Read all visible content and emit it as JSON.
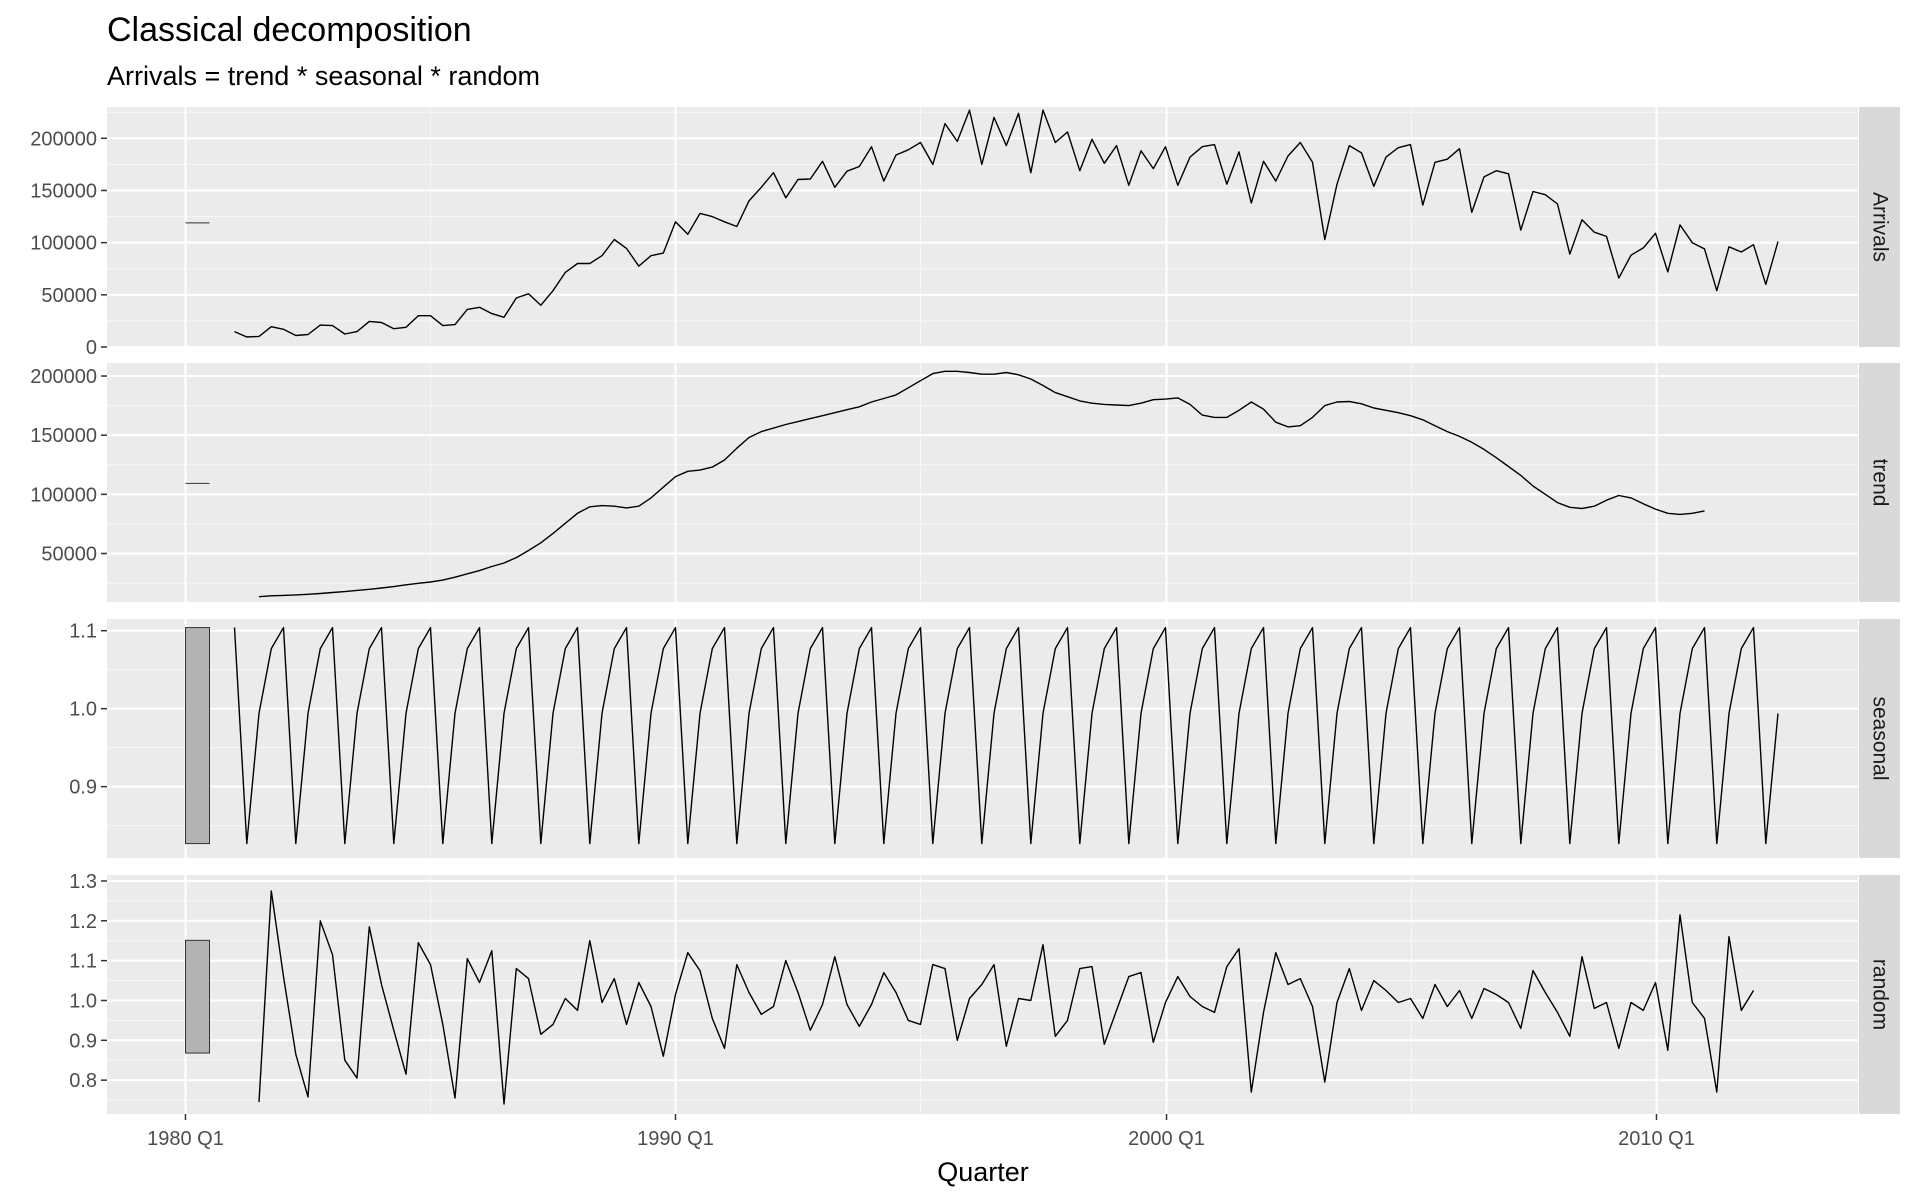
{
  "chart_data": {
    "type": "line",
    "title": "Classical decomposition",
    "subtitle": "Arrivals = trend * seasonal * random",
    "xlabel": "Quarter",
    "x_tick_labels": [
      "1980 Q1",
      "1990 Q1",
      "2000 Q1",
      "2010 Q1"
    ],
    "x_start": "1981 Q1",
    "x_end": "2012 Q3",
    "grid": true,
    "panels": [
      {
        "name": "Arrivals",
        "ylim": [
          0,
          230000
        ],
        "y_ticks": [
          0,
          50000,
          100000,
          150000,
          200000
        ],
        "y_tick_labels": [
          "0",
          "50000",
          "100000",
          "150000",
          "200000"
        ],
        "scale_bar": [
          118000,
          120000
        ],
        "values": [
          14800,
          9600,
          10200,
          19500,
          17000,
          11000,
          12000,
          21000,
          20500,
          12500,
          14800,
          24500,
          23500,
          17500,
          18900,
          30000,
          30000,
          20500,
          21500,
          36000,
          38000,
          32000,
          28500,
          47000,
          51000,
          40000,
          54000,
          71500,
          80000,
          80000,
          87500,
          103000,
          94500,
          77500,
          87500,
          90000,
          120000,
          108000,
          128000,
          125000,
          120000,
          115500,
          140000,
          153000,
          167000,
          143000,
          160500,
          161000,
          178000,
          153000,
          168500,
          173000,
          192000,
          159000,
          184000,
          189000,
          196000,
          175000,
          214000,
          197000,
          227000,
          175000,
          220000,
          193000,
          224000,
          167000,
          227000,
          196000,
          206000,
          169000,
          199000,
          176000,
          193000,
          155000,
          188000,
          171000,
          192000,
          155000,
          182000,
          192000,
          194000,
          156000,
          187000,
          138000,
          178000,
          159000,
          183000,
          196000,
          177000,
          103000,
          156000,
          193000,
          186000,
          154000,
          182000,
          191000,
          194000,
          136000,
          177000,
          180000,
          190000,
          129000,
          163000,
          169000,
          166000,
          112000,
          149000,
          146000,
          137000,
          89000,
          122000,
          110000,
          106000,
          66000,
          88000,
          95000,
          109000,
          72000,
          117000,
          100000,
          94000,
          54000,
          96000,
          91000,
          98000,
          60000,
          101000
        ]
      },
      {
        "name": "trend",
        "ylim": [
          9000,
          211000
        ],
        "y_ticks": [
          50000,
          100000,
          150000,
          200000
        ],
        "y_tick_labels": [
          "50000",
          "100000",
          "150000",
          "200000"
        ],
        "scale_bar": [
          108500,
          110000
        ],
        "values": [
          null,
          null,
          13500,
          14200,
          14600,
          15000,
          15500,
          16200,
          17000,
          17800,
          18800,
          19700,
          20800,
          22000,
          23500,
          24800,
          25900,
          27500,
          30000,
          32800,
          35500,
          39000,
          42000,
          46500,
          52500,
          59000,
          67000,
          75500,
          84000,
          89500,
          90500,
          90000,
          88500,
          90000,
          97000,
          106000,
          115000,
          119500,
          120500,
          123000,
          129000,
          139000,
          148000,
          153000,
          156000,
          159000,
          161500,
          164000,
          166500,
          169000,
          171500,
          174000,
          178000,
          181000,
          184000,
          190000,
          196000,
          202000,
          204000,
          204000,
          203000,
          201500,
          201500,
          203000,
          201000,
          197500,
          192000,
          186000,
          182500,
          179000,
          177000,
          176000,
          175500,
          175000,
          177000,
          180000,
          180500,
          181500,
          176000,
          167000,
          165000,
          165000,
          171000,
          178000,
          172000,
          161000,
          157000,
          158000,
          165000,
          175000,
          178000,
          178500,
          176500,
          173000,
          171000,
          169000,
          166500,
          163000,
          158000,
          153000,
          149000,
          144000,
          138000,
          131000,
          123500,
          116000,
          107000,
          100000,
          93000,
          89000,
          88000,
          90000,
          95000,
          99000,
          97000,
          92000,
          87500,
          84000,
          83000,
          84000,
          86000,
          null,
          null
        ]
      },
      {
        "name": "seasonal",
        "ylim": [
          0.8085,
          1.115
        ],
        "y_ticks": [
          0.9,
          1.0,
          1.1
        ],
        "y_tick_labels": [
          "0.9",
          "1.0",
          "1.1"
        ],
        "scale_bar": [
          0.827,
          1.104
        ],
        "pattern": [
          1.104,
          0.827,
          0.994,
          1.077
        ],
        "values": []
      },
      {
        "name": "random",
        "ylim": [
          0.715,
          1.315
        ],
        "y_ticks": [
          0.8,
          0.9,
          1.0,
          1.1,
          1.2,
          1.3
        ],
        "y_tick_labels": [
          "0.8",
          "0.9",
          "1.0",
          "1.1",
          "1.2",
          "1.3"
        ],
        "scale_bar": [
          0.868,
          1.151
        ],
        "values": [
          null,
          null,
          0.745,
          1.275,
          1.06,
          0.865,
          0.758,
          1.2,
          1.115,
          0.85,
          0.805,
          1.185,
          1.04,
          0.925,
          0.815,
          1.145,
          1.09,
          0.94,
          0.755,
          1.105,
          1.045,
          1.125,
          0.74,
          1.08,
          1.055,
          0.915,
          0.94,
          1.005,
          0.975,
          1.15,
          0.995,
          1.055,
          0.94,
          1.045,
          0.985,
          0.86,
          1.015,
          1.12,
          1.075,
          0.955,
          0.88,
          1.09,
          1.02,
          0.965,
          0.985,
          1.1,
          1.02,
          0.925,
          0.99,
          1.11,
          0.99,
          0.935,
          0.99,
          1.07,
          1.02,
          0.95,
          0.94,
          1.09,
          1.08,
          0.9,
          1.005,
          1.04,
          1.09,
          0.885,
          1.005,
          1.0,
          1.14,
          0.91,
          0.95,
          1.08,
          1.085,
          0.89,
          0.975,
          1.06,
          1.07,
          0.895,
          0.995,
          1.06,
          1.01,
          0.985,
          0.97,
          1.085,
          1.13,
          0.77,
          0.97,
          1.12,
          1.04,
          1.055,
          0.985,
          0.795,
          0.995,
          1.08,
          0.975,
          1.05,
          1.025,
          0.995,
          1.005,
          0.955,
          1.04,
          0.985,
          1.025,
          0.955,
          1.03,
          1.015,
          0.995,
          0.93,
          1.075,
          1.02,
          0.97,
          0.91,
          1.11,
          0.98,
          0.995,
          0.88,
          0.995,
          0.975,
          1.045,
          0.875,
          1.215,
          0.995,
          0.955,
          0.77,
          1.16,
          0.975,
          1.025,
          null,
          null
        ]
      }
    ]
  }
}
